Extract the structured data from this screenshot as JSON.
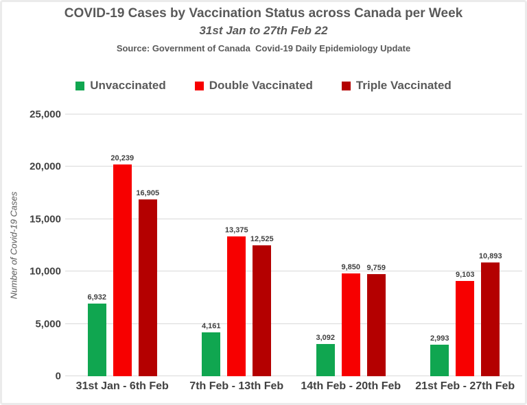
{
  "header": {
    "title": "COVID-19 Cases by Vaccination Status across Canada per Week",
    "subtitle": "31st Jan to 27th Feb 22",
    "source": "Source: Government of Canada  Covid-19 Daily Epidemiology Update"
  },
  "chart_data": {
    "type": "bar",
    "title": "COVID-19 Cases by Vaccination Status across Canada per Week",
    "subtitle": "31st Jan to 27th Feb 22",
    "source": "Source: Government of Canada  Covid-19 Daily Epidemiology Update",
    "categories": [
      "31st Jan - 6th Feb",
      "7th Feb - 13th Feb",
      "14th Feb - 20th Feb",
      "21st Feb - 27th Feb"
    ],
    "series": [
      {
        "name": "Unvaccinated",
        "color": "#10A650",
        "values": [
          6932,
          4161,
          3092,
          2993
        ]
      },
      {
        "name": "Double Vaccinated",
        "color": "#F70000",
        "values": [
          20239,
          13375,
          9850,
          9103
        ]
      },
      {
        "name": "Triple Vaccinated",
        "color": "#B40000",
        "values": [
          16905,
          12525,
          9759,
          10893
        ]
      }
    ],
    "xlabel": "",
    "ylabel": "Number of Covid-19 Cases",
    "ylim": [
      0,
      25000
    ],
    "ytick_interval": 5000,
    "yticks": [
      "0",
      "5,000",
      "10,000",
      "15,000",
      "20,000",
      "25,000"
    ],
    "grid": true,
    "legend_position": "top",
    "data_labels": true,
    "text_colors": {
      "title": "#595959",
      "ticks": "#404040",
      "gridline": "#d9d9d9"
    }
  }
}
